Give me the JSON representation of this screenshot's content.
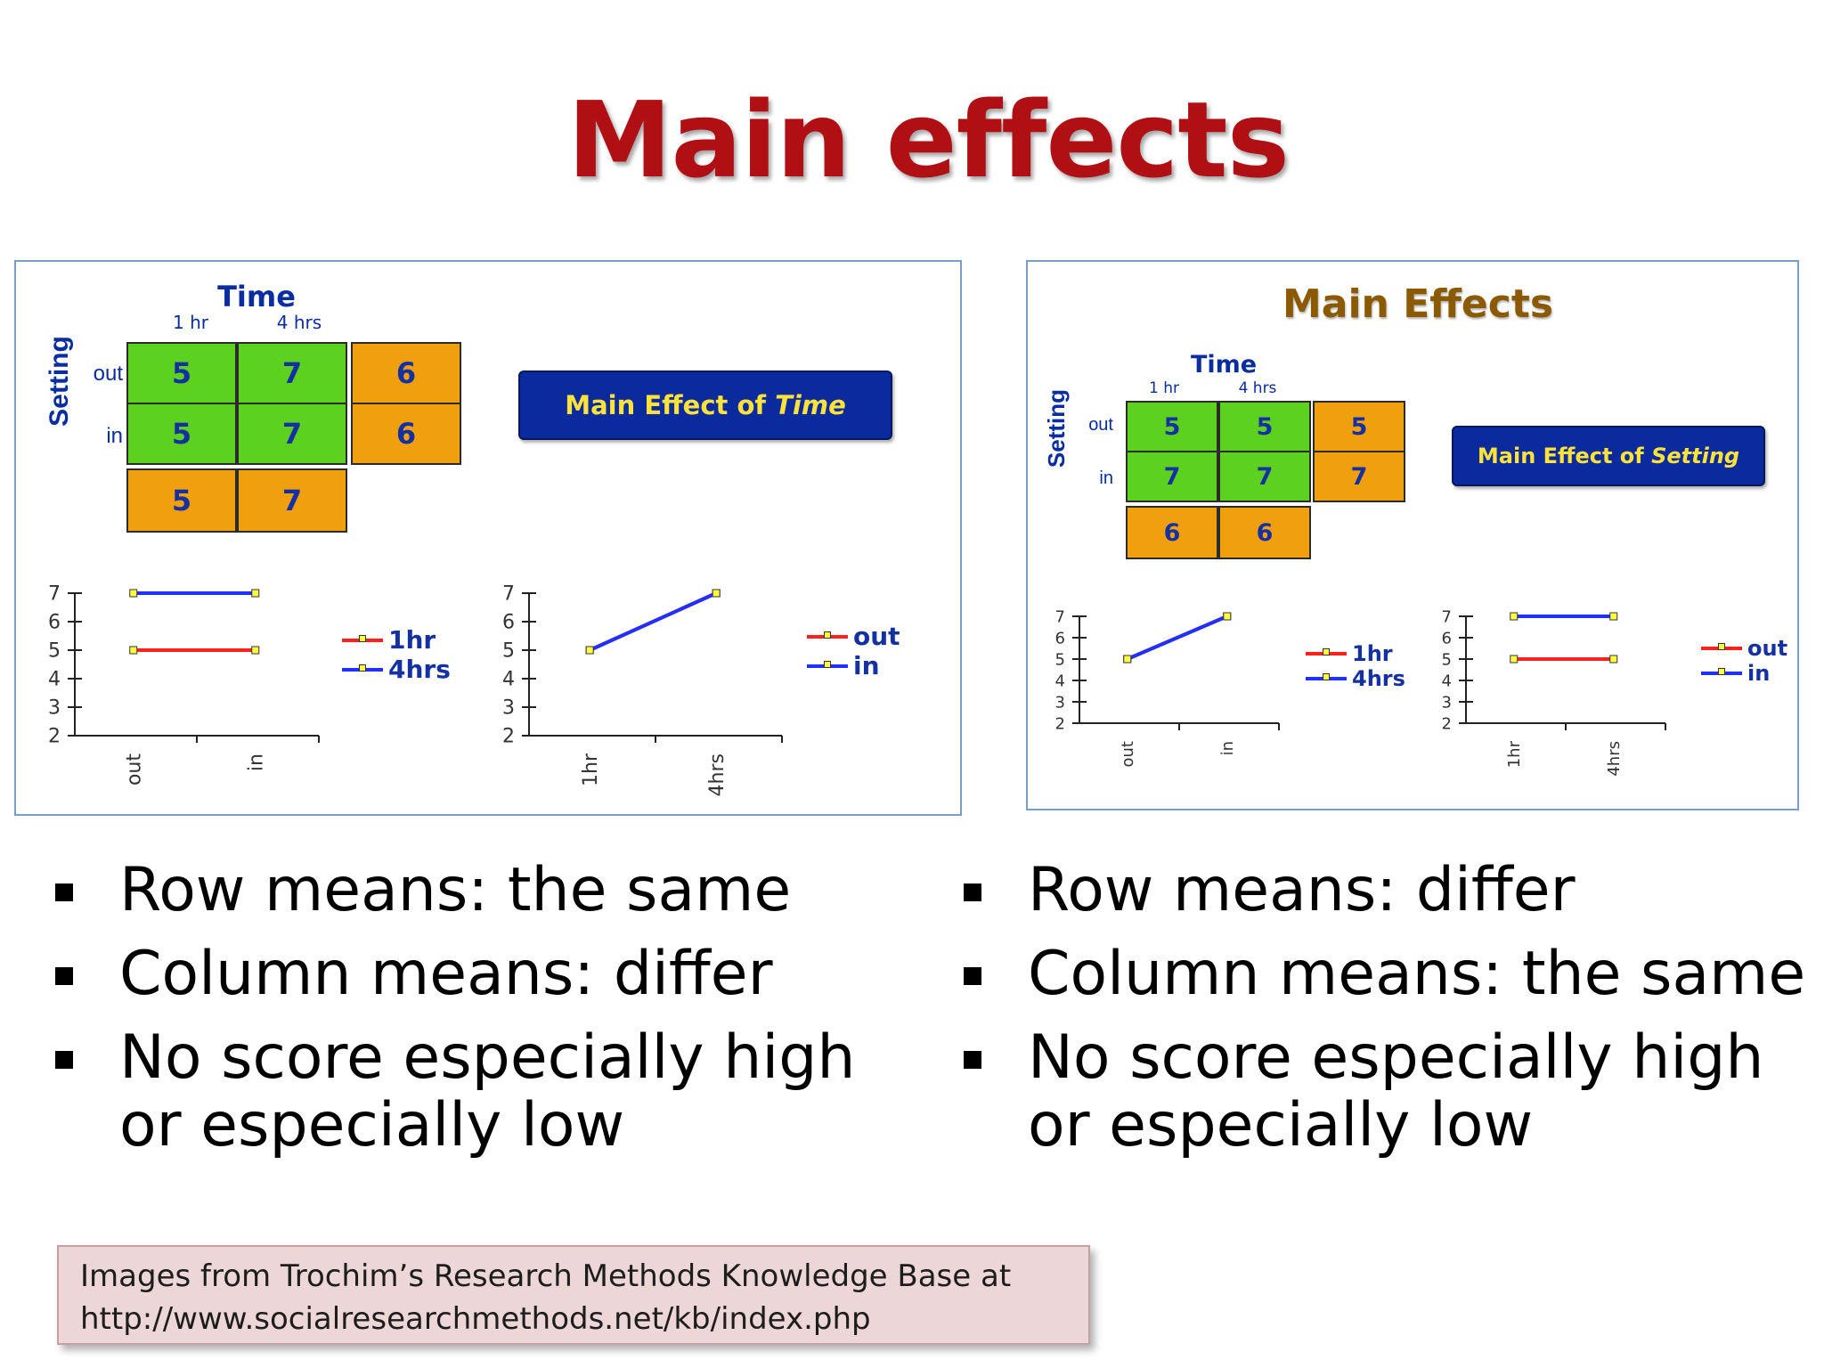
{
  "title": "Main effects",
  "left_panel": {
    "grid": {
      "time_label": "Time",
      "col_labels": [
        "1 hr",
        "4 hrs"
      ],
      "setting_label": "Setting",
      "row_labels": [
        "out",
        "in"
      ],
      "cells": [
        [
          "5",
          "7"
        ],
        [
          "5",
          "7"
        ]
      ],
      "row_means": [
        "6",
        "6"
      ],
      "col_means": [
        "5",
        "7"
      ]
    },
    "effect_label_prefix": "Main Effect of ",
    "effect_label_emph": "Time",
    "chart1": {
      "type": "line",
      "x": [
        "out",
        "in"
      ],
      "ylim": [
        2,
        7
      ],
      "yticks": [
        "2",
        "3",
        "4",
        "5",
        "6",
        "7"
      ],
      "series": [
        {
          "name": "1hr",
          "values": [
            5,
            5
          ],
          "color": "#ff2020"
        },
        {
          "name": "4hrs",
          "values": [
            7,
            7
          ],
          "color": "#2030ff"
        }
      ]
    },
    "chart2": {
      "type": "line",
      "x": [
        "1hr",
        "4hrs"
      ],
      "ylim": [
        2,
        7
      ],
      "yticks": [
        "2",
        "3",
        "4",
        "5",
        "6",
        "7"
      ],
      "series": [
        {
          "name": "out",
          "values": [
            5,
            7
          ],
          "color": "#ff2020"
        },
        {
          "name": "in",
          "values": [
            5,
            7
          ],
          "color": "#2030ff"
        }
      ]
    }
  },
  "right_panel": {
    "heading": "Main Effects",
    "grid": {
      "time_label": "Time",
      "col_labels": [
        "1 hr",
        "4 hrs"
      ],
      "setting_label": "Setting",
      "row_labels": [
        "out",
        "in"
      ],
      "cells": [
        [
          "5",
          "5"
        ],
        [
          "7",
          "7"
        ]
      ],
      "row_means": [
        "5",
        "7"
      ],
      "col_means": [
        "6",
        "6"
      ]
    },
    "effect_label_prefix": "Main Effect of ",
    "effect_label_emph": "Setting",
    "chart1": {
      "type": "line",
      "x": [
        "out",
        "in"
      ],
      "ylim": [
        2,
        7
      ],
      "yticks": [
        "2",
        "3",
        "4",
        "5",
        "6",
        "7"
      ],
      "series": [
        {
          "name": "1hr",
          "values": [
            5,
            7
          ],
          "color": "#ff2020"
        },
        {
          "name": "4hrs",
          "values": [
            5,
            7
          ],
          "color": "#2030ff"
        }
      ]
    },
    "chart2": {
      "type": "line",
      "x": [
        "1hr",
        "4hrs"
      ],
      "ylim": [
        2,
        7
      ],
      "yticks": [
        "2",
        "3",
        "4",
        "5",
        "6",
        "7"
      ],
      "series": [
        {
          "name": "out",
          "values": [
            5,
            5
          ],
          "color": "#ff2020"
        },
        {
          "name": "in",
          "values": [
            7,
            7
          ],
          "color": "#2030ff"
        }
      ]
    }
  },
  "left_bullets": [
    "Row means: the same",
    "Column means: differ",
    "No score especially high or especially low"
  ],
  "right_bullets": [
    "Row means: differ",
    "Column means: the same",
    "No score especially high or especially low"
  ],
  "credit": {
    "line1": "Images from Trochim’s Research Methods Knowledge Base at",
    "line2": "http://www.socialresearchmethods.net/kb/index.php"
  }
}
